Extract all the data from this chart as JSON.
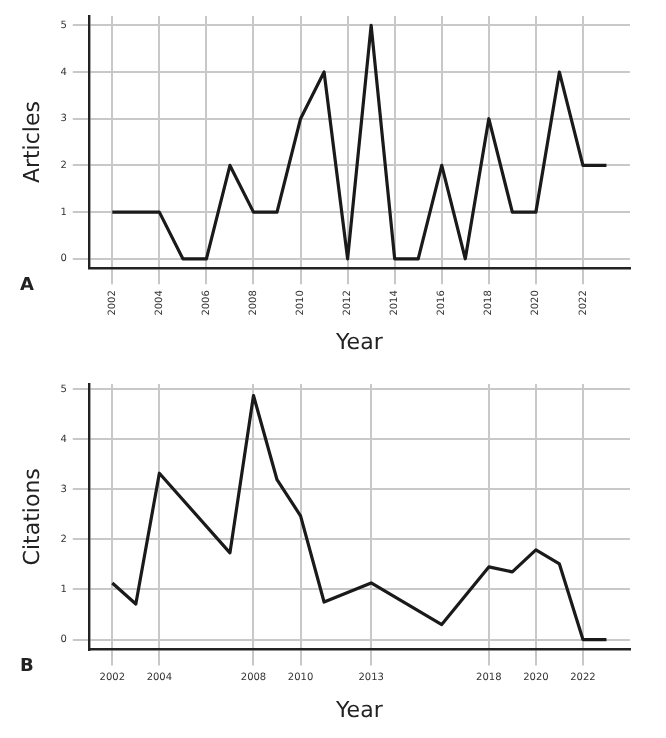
{
  "chart_data": [
    {
      "type": "line",
      "xlabel": "Year",
      "ylabel": "Articles",
      "annotations": [
        "A"
      ],
      "x": [
        2002,
        2003,
        2004,
        2005,
        2006,
        2007,
        2008,
        2009,
        2010,
        2011,
        2012,
        2013,
        2014,
        2015,
        2016,
        2017,
        2018,
        2019,
        2020,
        2021,
        2022,
        2023
      ],
      "series": [
        {
          "color": "#1a1a1a",
          "values": [
            1,
            1,
            1,
            0,
            0,
            2,
            1,
            1,
            3,
            4,
            0,
            5,
            0,
            0,
            2,
            0,
            3,
            1,
            1,
            4,
            2,
            2
          ]
        }
      ],
      "xlim": [
        2001,
        2024
      ],
      "xticks": [
        2002,
        2004,
        2006,
        2008,
        2010,
        2012,
        2014,
        2016,
        2018,
        2020,
        2022
      ],
      "ylim": [
        -0.2,
        5.2
      ],
      "yticks": [
        0,
        1,
        2,
        3,
        4,
        5
      ],
      "grid": true,
      "legend": false,
      "marker": "none",
      "line_style": "solid"
    },
    {
      "type": "line",
      "xlabel": "Year",
      "ylabel": "Citations",
      "annotations": [
        "B"
      ],
      "x": [
        2002,
        2003,
        2004,
        2007,
        2008,
        2009,
        2010,
        2011,
        2013,
        2016,
        2018,
        2019,
        2020,
        2021,
        2022,
        2023
      ],
      "series": [
        {
          "color": "#1a1a1a",
          "values": [
            1.13,
            0.71,
            3.32,
            1.73,
            4.87,
            3.19,
            2.47,
            0.75,
            1.13,
            0.3,
            1.45,
            1.35,
            1.79,
            1.51,
            0,
            0
          ]
        }
      ],
      "xlim": [
        2001,
        2024
      ],
      "xticks": [
        2002,
        2004,
        2008,
        2010,
        2013,
        2018,
        2020,
        2022
      ],
      "ylim": [
        -0.2,
        5.1
      ],
      "yticks": [
        0,
        1,
        2,
        3,
        4,
        5
      ],
      "grid": true,
      "legend": false,
      "marker": "none",
      "line_style": "solid"
    }
  ]
}
